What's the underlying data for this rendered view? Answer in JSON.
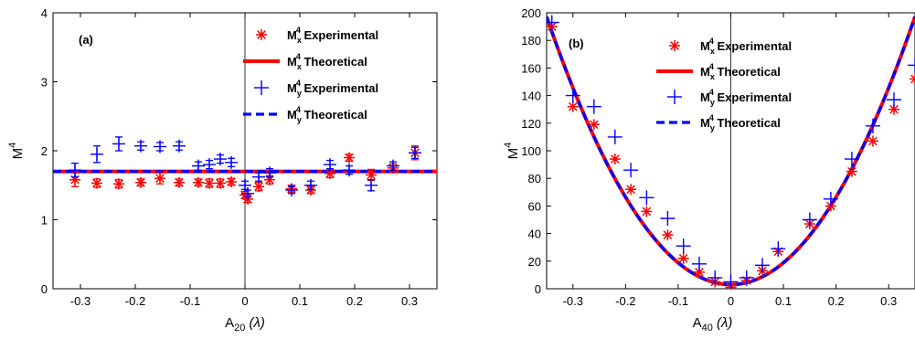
{
  "colors": {
    "x_series": "#ff0000",
    "y_series": "#0000ff",
    "axis": "#000000"
  },
  "chart_data": [
    {
      "type": "scatter",
      "panel_label": "(a)",
      "xlabel": {
        "main": "A",
        "sub": "20",
        "unit": " (λ)"
      },
      "ylabel": {
        "main": "M",
        "sup": "4"
      },
      "xlim": [
        -0.35,
        0.35
      ],
      "ylim": [
        0,
        4
      ],
      "xticks": [
        -0.3,
        -0.2,
        -0.1,
        0,
        0.1,
        0.2,
        0.3
      ],
      "xtick_labels": [
        "-0.3",
        "-0.2",
        "-0.1",
        "0",
        "0.1",
        "0.2",
        "0.3"
      ],
      "yticks": [
        0,
        1,
        2,
        3,
        4
      ],
      "ytick_labels": [
        "0",
        "1",
        "2",
        "3",
        "4"
      ],
      "zero_line": true,
      "legend": {
        "position": "top-right",
        "entries": [
          {
            "prefix": "M",
            "sup": "4",
            "sub": "x",
            "suffix": " Experimental"
          },
          {
            "prefix": "M",
            "sup": "4",
            "sub": "x",
            "suffix": " Theoretical"
          },
          {
            "prefix": "M",
            "sup": "4",
            "sub": "y",
            "suffix": " Experimental"
          },
          {
            "prefix": "M",
            "sup": "4",
            "sub": "y",
            "suffix": " Theoretical"
          }
        ]
      },
      "series": [
        {
          "marker": "asterisk",
          "color": "#ff0000",
          "x": [
            -0.31,
            -0.27,
            -0.23,
            -0.19,
            -0.155,
            -0.12,
            -0.085,
            -0.065,
            -0.045,
            -0.025,
            0,
            0.005,
            0.025,
            0.045,
            0.085,
            0.12,
            0.155,
            0.19,
            0.23,
            0.27,
            0.31
          ],
          "y": [
            1.58,
            1.53,
            1.52,
            1.54,
            1.6,
            1.54,
            1.54,
            1.53,
            1.53,
            1.55,
            1.36,
            1.3,
            1.48,
            1.58,
            1.45,
            1.43,
            1.67,
            1.9,
            1.65,
            1.75,
            1.97
          ],
          "err": [
            0.1,
            0.06,
            0.06,
            0.05,
            0.08,
            0.05,
            0.05,
            0.06,
            0.06,
            0.05,
            0.05,
            0.05,
            0.06,
            0.06,
            0.05,
            0.05,
            0.06,
            0.05,
            0.08,
            0.06,
            0.1
          ]
        },
        {
          "marker": "line",
          "color": "#ff0000",
          "style": "solid",
          "x": [
            -0.35,
            0.35
          ],
          "y": [
            1.7,
            1.7
          ]
        },
        {
          "marker": "plus",
          "color": "#0000ff",
          "x": [
            -0.31,
            -0.27,
            -0.23,
            -0.19,
            -0.155,
            -0.12,
            -0.085,
            -0.065,
            -0.045,
            -0.025,
            0,
            0.005,
            0.025,
            0.045,
            0.085,
            0.12,
            0.155,
            0.19,
            0.23,
            0.27,
            0.31
          ],
          "y": [
            1.72,
            1.95,
            2.1,
            2.07,
            2.06,
            2.07,
            1.78,
            1.8,
            1.88,
            1.83,
            1.5,
            1.38,
            1.62,
            1.68,
            1.43,
            1.5,
            1.8,
            1.72,
            1.5,
            1.78,
            1.97
          ],
          "err": [
            0.1,
            0.12,
            0.1,
            0.06,
            0.06,
            0.06,
            0.06,
            0.06,
            0.06,
            0.06,
            0.06,
            0.05,
            0.06,
            0.06,
            0.05,
            0.06,
            0.06,
            0.06,
            0.08,
            0.06,
            0.08
          ]
        },
        {
          "marker": "line",
          "color": "#0000ff",
          "style": "dashed",
          "x": [
            -0.35,
            0.35
          ],
          "y": [
            1.7,
            1.7
          ]
        }
      ]
    },
    {
      "type": "scatter",
      "panel_label": "(b)",
      "xlabel": {
        "main": "A",
        "sub": "40",
        "unit": " (λ)"
      },
      "ylabel": {
        "main": "M",
        "sup": "4"
      },
      "xlim": [
        -0.35,
        0.35
      ],
      "ylim": [
        0,
        200
      ],
      "xticks": [
        -0.3,
        -0.2,
        -0.1,
        0,
        0.1,
        0.2,
        0.3
      ],
      "xtick_labels": [
        "-0.3",
        "-0.2",
        "-0.1",
        "0",
        "0.1",
        "0.2",
        "0.3"
      ],
      "yticks": [
        0,
        20,
        40,
        60,
        80,
        100,
        120,
        140,
        160,
        180,
        200
      ],
      "ytick_labels": [
        "0",
        "20",
        "40",
        "60",
        "80",
        "100",
        "120",
        "140",
        "160",
        "180",
        "200"
      ],
      "zero_line": true,
      "legend": {
        "position": "top-left",
        "entries": [
          {
            "prefix": "M",
            "sup": "4",
            "sub": "x",
            "suffix": " Experimental"
          },
          {
            "prefix": "M",
            "sup": "4",
            "sub": "x",
            "suffix": " Theoretical"
          },
          {
            "prefix": "M",
            "sup": "4",
            "sub": "y",
            "suffix": " Experimental"
          },
          {
            "prefix": "M",
            "sup": "4",
            "sub": "y",
            "suffix": " Theoretical"
          }
        ]
      },
      "series": [
        {
          "marker": "asterisk",
          "color": "#ff0000",
          "x": [
            -0.34,
            -0.3,
            -0.26,
            -0.22,
            -0.19,
            -0.16,
            -0.12,
            -0.09,
            -0.06,
            -0.03,
            0,
            0.03,
            0.06,
            0.09,
            0.15,
            0.19,
            0.23,
            0.27,
            0.31,
            0.35
          ],
          "y": [
            190,
            132,
            119,
            94,
            72,
            56,
            39,
            22,
            12,
            5,
            1,
            6,
            13,
            27,
            47,
            60,
            85,
            107,
            130,
            152
          ],
          "err": []
        },
        {
          "marker": "curve",
          "color": "#ff0000",
          "style": "solid",
          "coef": 1585,
          "offset": 3
        },
        {
          "marker": "plus",
          "color": "#0000ff",
          "x": [
            -0.34,
            -0.3,
            -0.26,
            -0.22,
            -0.19,
            -0.16,
            -0.12,
            -0.09,
            -0.06,
            -0.03,
            0,
            0.03,
            0.06,
            0.09,
            0.15,
            0.19,
            0.23,
            0.27,
            0.31,
            0.35
          ],
          "y": [
            193,
            140,
            132,
            110,
            86,
            66,
            51,
            31,
            18,
            8,
            5,
            8,
            17,
            29,
            50,
            65,
            94,
            118,
            137,
            162
          ],
          "err": []
        },
        {
          "marker": "curve",
          "color": "#0000ff",
          "style": "dashed",
          "coef": 1585,
          "offset": 3
        }
      ]
    }
  ]
}
